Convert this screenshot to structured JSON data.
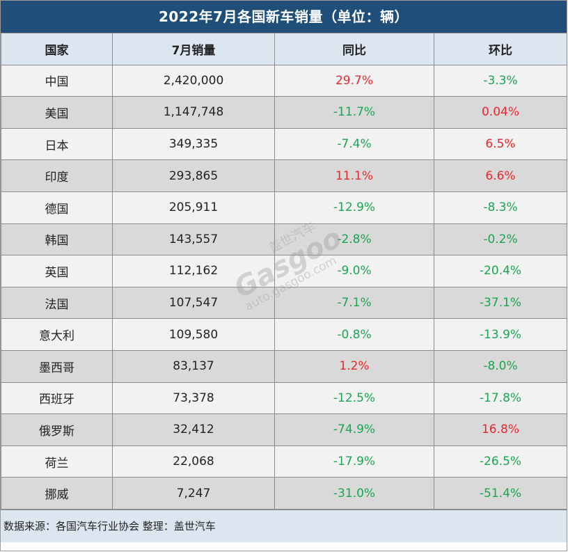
{
  "title": "2022年7月各国新车销量（单位：辆）",
  "headers": [
    "国家",
    "7月销量",
    "同比",
    "环比"
  ],
  "rows": [
    {
      "country": "中国",
      "sales": "2,420,000",
      "yoy": "29.7%",
      "mom": "-3.3%"
    },
    {
      "country": "美国",
      "sales": "1,147,748",
      "yoy": "-11.7%",
      "mom": "0.04%"
    },
    {
      "country": "日本",
      "sales": "349,335",
      "yoy": "-7.4%",
      "mom": "6.5%"
    },
    {
      "country": "印度",
      "sales": "293,865",
      "yoy": "11.1%",
      "mom": "6.6%"
    },
    {
      "country": "德国",
      "sales": "205,911",
      "yoy": "-12.9%",
      "mom": "-8.3%"
    },
    {
      "country": "韩国",
      "sales": "143,557",
      "yoy": "-2.8%",
      "mom": "-0.2%"
    },
    {
      "country": "英国",
      "sales": "112,162",
      "yoy": "-9.0%",
      "mom": "-20.4%"
    },
    {
      "country": "法国",
      "sales": "107,547",
      "yoy": "-7.1%",
      "mom": "-37.1%"
    },
    {
      "country": "意大利",
      "sales": "109,580",
      "yoy": "-0.8%",
      "mom": "-13.9%"
    },
    {
      "country": "墨西哥",
      "sales": "83,137",
      "yoy": "1.2%",
      "mom": "-8.0%"
    },
    {
      "country": "西班牙",
      "sales": "73,378",
      "yoy": "-12.5%",
      "mom": "-17.8%"
    },
    {
      "country": "俄罗斯",
      "sales": "32,412",
      "yoy": "-74.9%",
      "mom": "16.8%"
    },
    {
      "country": "荷兰",
      "sales": "22,068",
      "yoy": "-17.9%",
      "mom": "-26.5%"
    },
    {
      "country": "挪威",
      "sales": "7,247",
      "yoy": "-31.0%",
      "mom": "-51.4%"
    }
  ],
  "footer": "数据来源：各国汽车行业协会 整理：盖世汽车",
  "watermark": {
    "cn": "盖世汽车",
    "logo": "Gasgoo",
    "url": "auto.gasgoo.com"
  },
  "colors": {
    "header_bar": "#1f4e79",
    "positive": "#e8262c",
    "negative": "#18a650",
    "column_header_bg": "#dce6f1"
  }
}
